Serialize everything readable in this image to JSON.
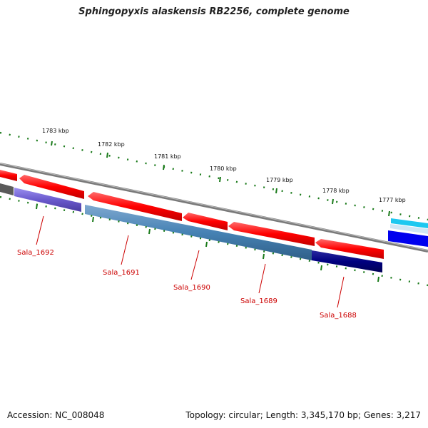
{
  "header": {
    "title": "Sphingopyxis alaskensis RB2256, complete genome"
  },
  "footer": {
    "accession": "Accession: NC_008048",
    "summary": "Topology: circular; Length: 3,345,170 bp; Genes: 3,217"
  },
  "map": {
    "kbp_labels": [
      "1783 kbp",
      "1782 kbp",
      "1781 kbp",
      "1780 kbp",
      "1779 kbp",
      "1778 kbp",
      "1777 kbp"
    ],
    "gene_labels": [
      "Sala_1692",
      "Sala_1691",
      "Sala_1690",
      "Sala_1689",
      "Sala_1688"
    ],
    "colors": {
      "forward_cds": "#ff0000",
      "reverse_cds_1692": "#6a5acd",
      "reverse_cds_mid": "#4682b4",
      "reverse_cds_1688": "#000080",
      "tick": "#1a7a1a",
      "backbone": "#8a8a8a",
      "label_line": "#cc0000"
    }
  }
}
